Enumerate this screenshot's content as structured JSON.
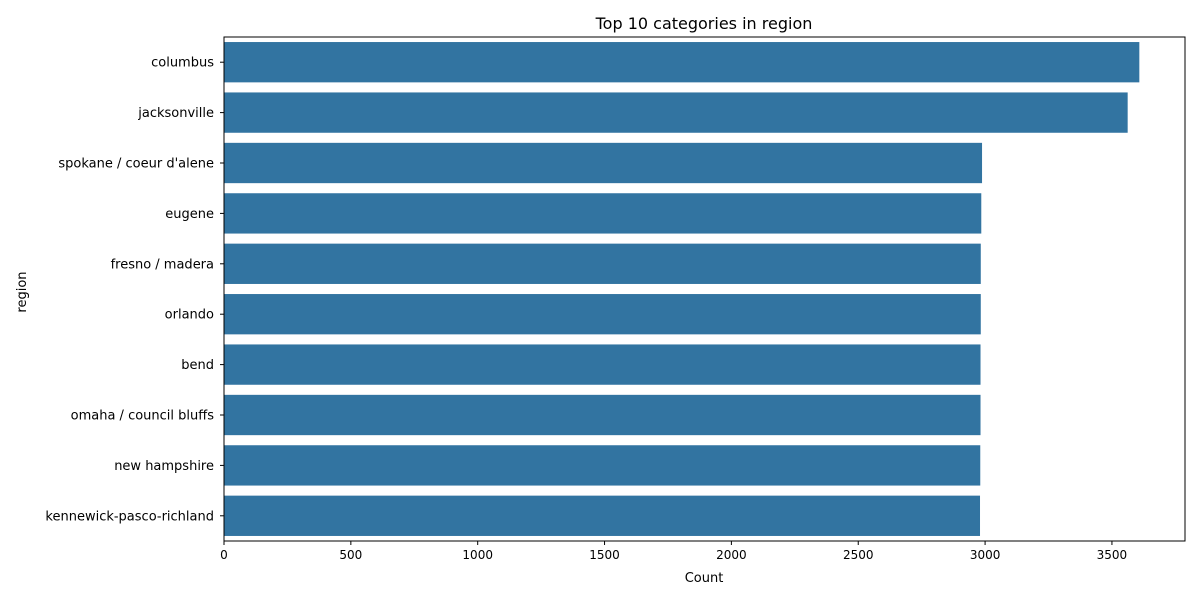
{
  "chart_data": {
    "type": "bar",
    "orientation": "horizontal",
    "title": "Top 10 categories in region",
    "xlabel": "Count",
    "ylabel": "region",
    "categories": [
      "columbus",
      "jacksonville",
      "spokane / coeur d'alene",
      "eugene",
      "fresno / madera",
      "orlando",
      "bend",
      "omaha / council bluffs",
      "new hampshire",
      "kennewick-pasco-richland"
    ],
    "values": [
      3608,
      3562,
      2988,
      2985,
      2983,
      2983,
      2982,
      2982,
      2981,
      2980
    ],
    "xlim": [
      0,
      3788
    ],
    "xticks": [
      0,
      500,
      1000,
      1500,
      2000,
      2500,
      3000,
      3500
    ],
    "bar_color": "#3274a1",
    "grid": false
  }
}
